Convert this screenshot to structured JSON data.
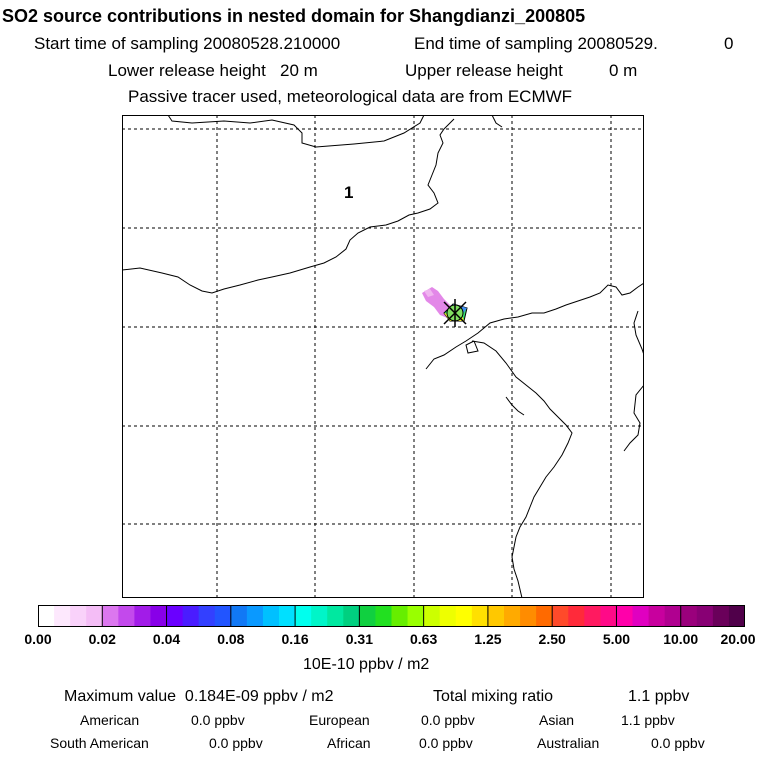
{
  "header": {
    "title": "SO2 source contributions in nested domain for Shangdianzi_200805",
    "start_label": "Start time of sampling 20080528.210000",
    "end_label": "End time of sampling 20080529.",
    "end_suffix": "0",
    "lower_label": "Lower release height   20 m",
    "upper_label": "Upper release height",
    "upper_value": "0 m",
    "tracer_note": "Passive tracer used, meteorological data are from ECMWF"
  },
  "map": {
    "region_label": "1",
    "station_marker": "station-marker-icon",
    "plume_colors": [
      "#e37ee6",
      "#d07ce8",
      "#f0b5f0"
    ]
  },
  "colorbar": {
    "colors": [
      "#ffffff",
      "#fde8fd",
      "#f9d2fa",
      "#f4bdf6",
      "#dc77ef",
      "#c349ec",
      "#a21ce8",
      "#8800e8",
      "#6a00ff",
      "#4a1cff",
      "#3340ff",
      "#2255ff",
      "#1178f5",
      "#0a99ff",
      "#00c0ff",
      "#00e0ff",
      "#00ffee",
      "#00f5c8",
      "#00e8a0",
      "#00d080",
      "#10d040",
      "#22e020",
      "#66ee00",
      "#99ff00",
      "#ccff00",
      "#eeff00",
      "#ffff00",
      "#ffe000",
      "#ffc800",
      "#ffaa00",
      "#ff8c00",
      "#ff6a00",
      "#ff4a2a",
      "#ff2a3a",
      "#ff1a60",
      "#ff0a88",
      "#ff00aa",
      "#e000c0",
      "#c8009e",
      "#b00090",
      "#9a007c",
      "#880074",
      "#6a005a",
      "#50004a"
    ],
    "labels": [
      "0.00",
      "0.02",
      "0.04",
      "0.08",
      "0.16",
      "0.31",
      "0.63",
      "1.25",
      "2.50",
      "5.00",
      "10.00",
      "20.00"
    ],
    "unit": "10E-10 ppbv / m2"
  },
  "summary": {
    "max_label": "Maximum value  0.184E-09 ppbv / m2",
    "total_label": "Total mixing ratio",
    "total_value": "1.1 ppbv",
    "american_label": "American",
    "american_value": "0.0 ppbv",
    "european_label": "European",
    "european_value": "0.0 ppbv",
    "asian_label": "Asian",
    "asian_value": "1.1 ppbv",
    "south_american_label": "South American",
    "south_american_value": "0.0 ppbv",
    "african_label": "African",
    "african_value": "0.0 ppbv",
    "australian_label": "Australian",
    "australian_value": "0.0 ppbv"
  }
}
